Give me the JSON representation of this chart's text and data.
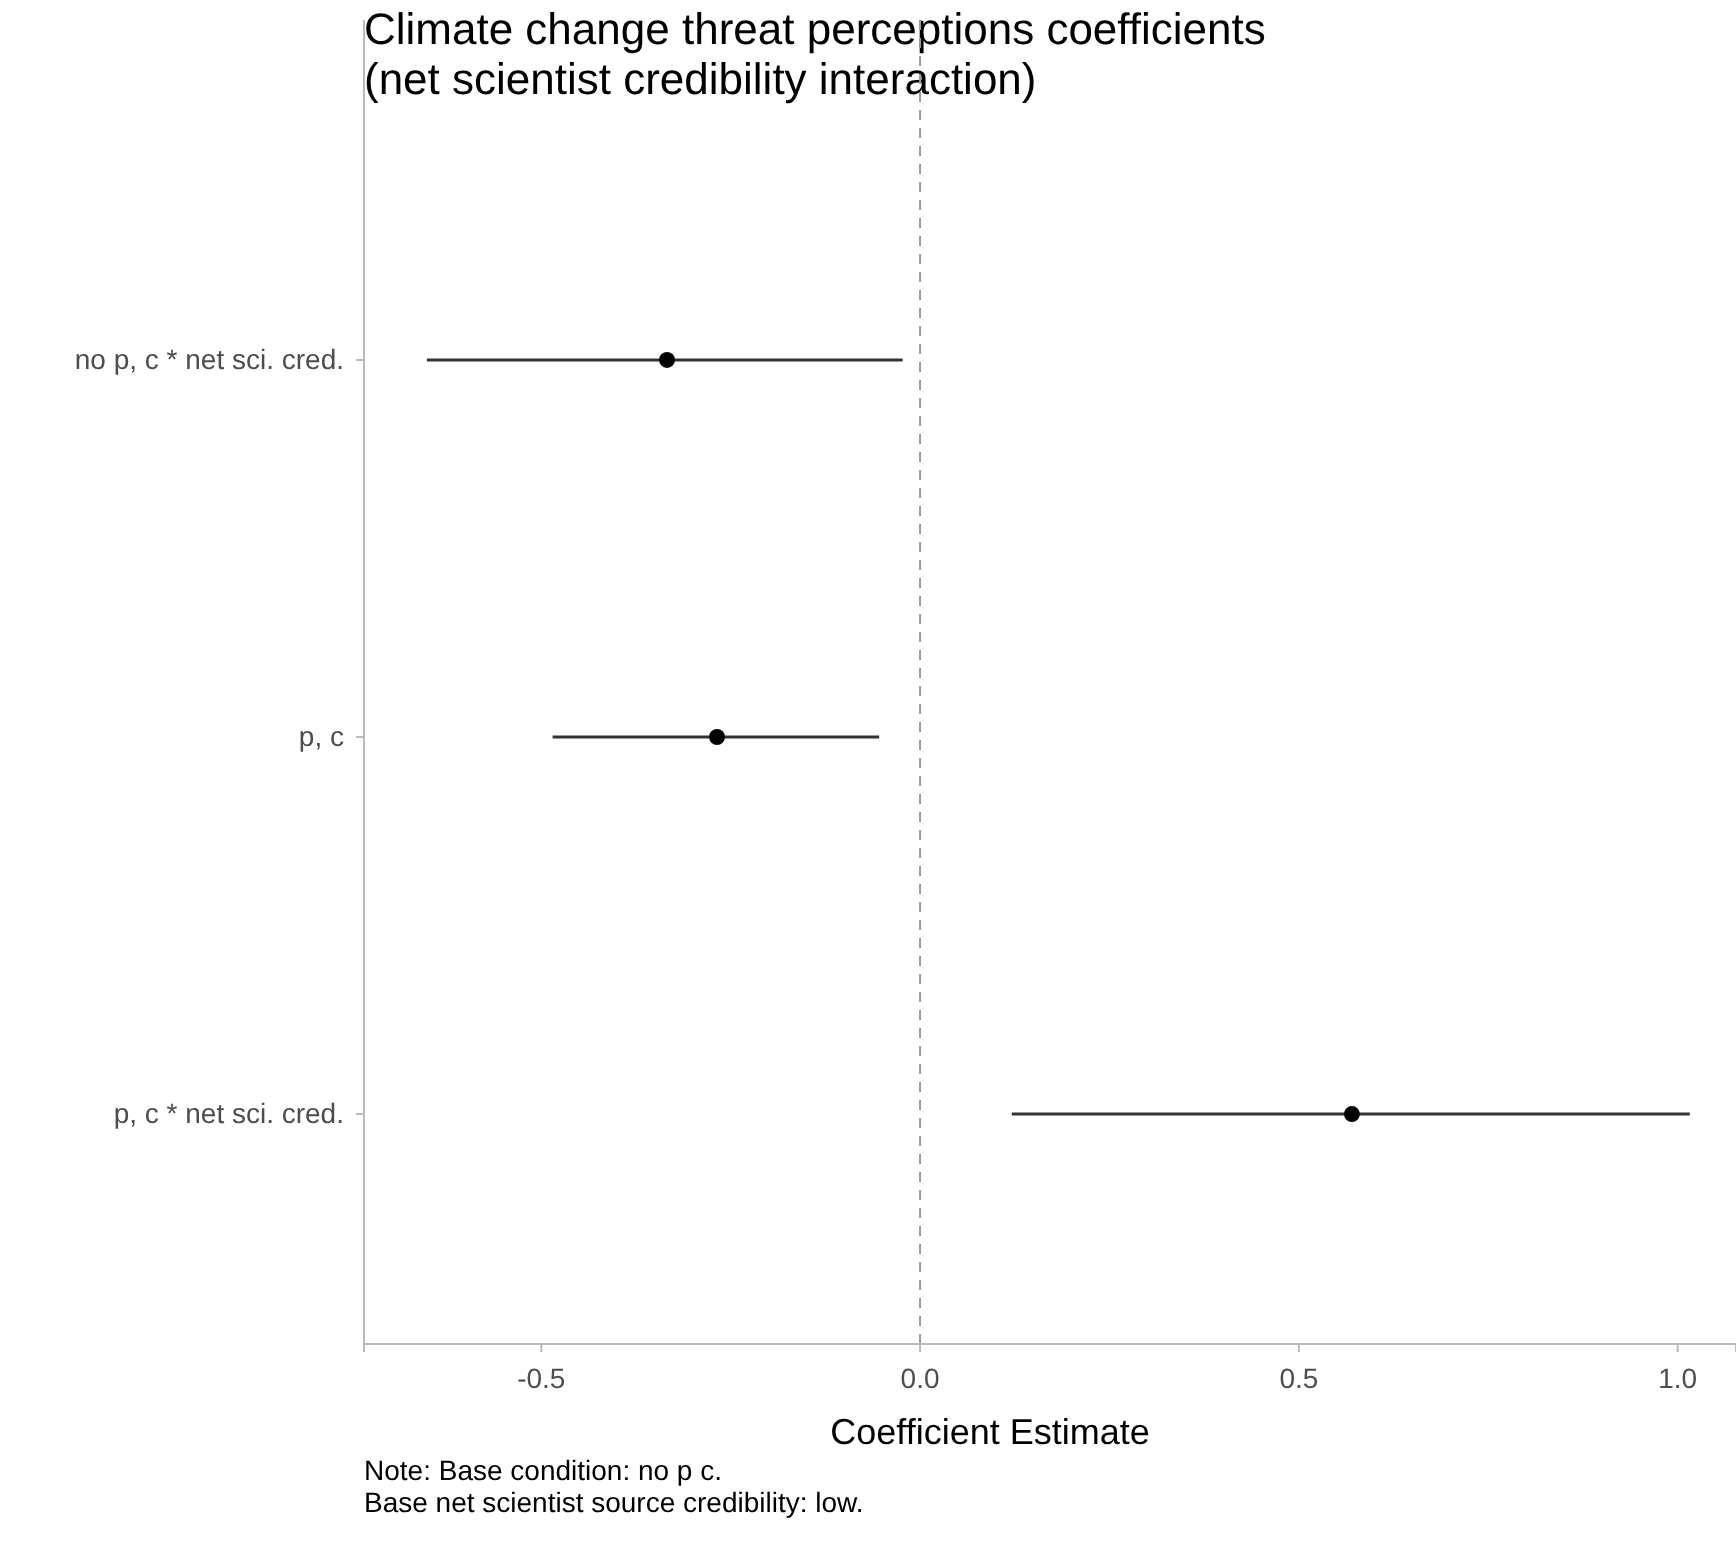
{
  "chart_data": {
    "type": "scatter",
    "orientation": "horizontal",
    "title": "Climate change threat perceptions coefficients\n(net scientist credibility interaction)",
    "xlabel": "Coefficient Estimate",
    "categories": [
      "no p, c * net sci. cred.",
      "p, c",
      "p, c * net sci. cred."
    ],
    "values": [
      -0.334,
      -0.268,
      0.57
    ],
    "errors": [
      [
        -0.651,
        -0.023
      ],
      [
        -0.485,
        -0.054
      ],
      [
        0.121,
        1.016
      ]
    ],
    "color": "#000000",
    "marker": "circle",
    "xlim": [
      -0.734,
      1.077
    ],
    "xticks": [
      {
        "value": -0.5,
        "label": "-0.5"
      },
      {
        "value": 0,
        "label": "0.0"
      },
      {
        "value": 0.5,
        "label": "0.5"
      },
      {
        "value": 1,
        "label": "1.0"
      }
    ],
    "ref_lines": [
      {
        "axis": "x",
        "value": 0,
        "color": "#999999",
        "line_style": "dashed"
      }
    ],
    "grid": false,
    "annotations": [
      "Note: Base condition: no p c.\nBase net scientist source credibility: low."
    ]
  }
}
